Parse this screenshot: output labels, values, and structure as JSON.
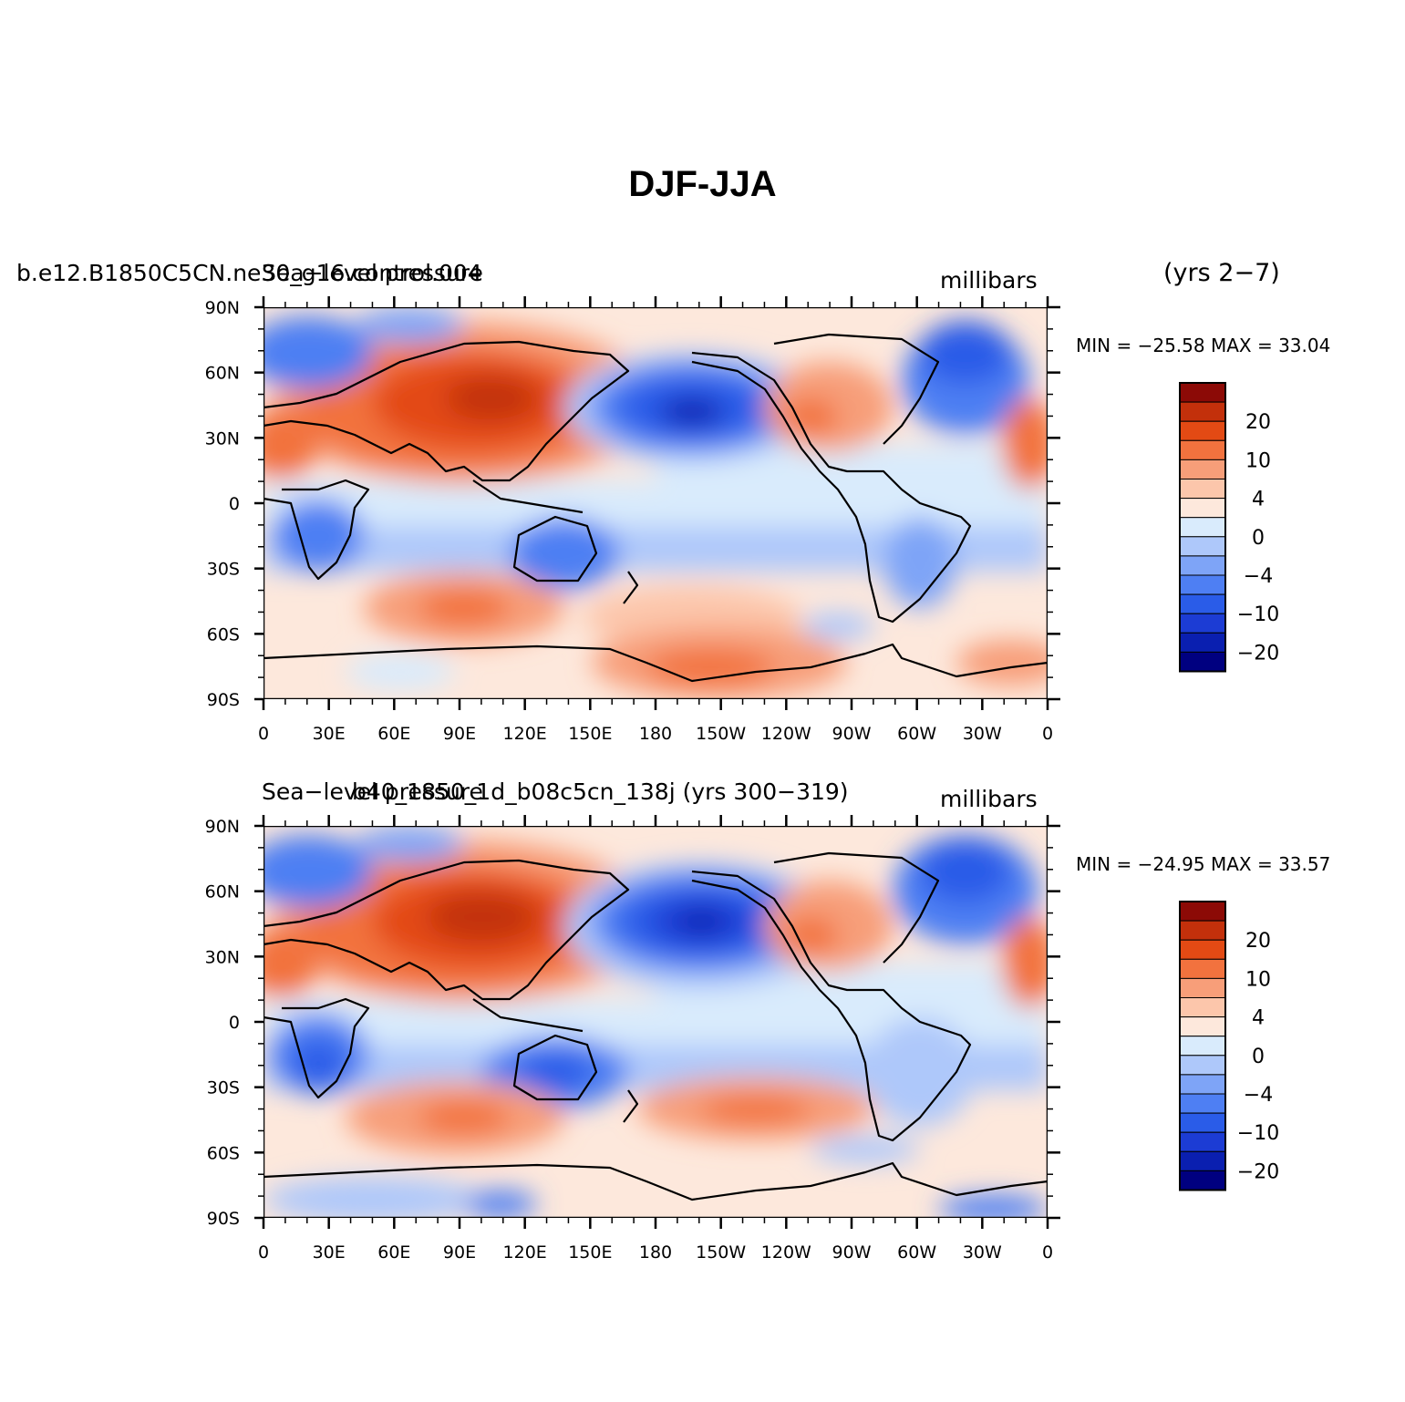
{
  "title": "DJF-JJA",
  "colorbar": {
    "colors": [
      "#000080",
      "#0a1fb0",
      "#1c3cd4",
      "#2a5ce8",
      "#4e7ff3",
      "#7ea4f7",
      "#aec8fa",
      "#d9ebfc",
      "#fde8dc",
      "#fcc6ab",
      "#f79e79",
      "#f2723e",
      "#e34a14",
      "#c3300b",
      "#8c0a06"
    ],
    "labels": [
      "20",
      "10",
      "4",
      "0",
      "−4",
      "−10",
      "−20"
    ]
  },
  "panels": [
    {
      "left_label": "b.e12.B1850C5CN.ne30_g16.control.004",
      "center_label": "Sea−level pressure",
      "units": "millibars",
      "years": "(yrs 2−7)",
      "min_max": "MIN = −25.58 MAX =  33.04"
    },
    {
      "left_label": "",
      "center_label": "Sea−level pressure",
      "overlay_label": "b40_1850_1d_b08c5cn_138j (yrs 300−319)",
      "units": "millibars",
      "years": "",
      "min_max": "MIN = −24.95 MAX =  33.57"
    }
  ],
  "lat_labels": [
    "90N",
    "60N",
    "30N",
    "0",
    "30S",
    "60S",
    "90S"
  ],
  "lon_labels": [
    "0",
    "30E",
    "60E",
    "90E",
    "120E",
    "150E",
    "180",
    "150W",
    "120W",
    "90W",
    "60W",
    "30W",
    "0"
  ]
}
